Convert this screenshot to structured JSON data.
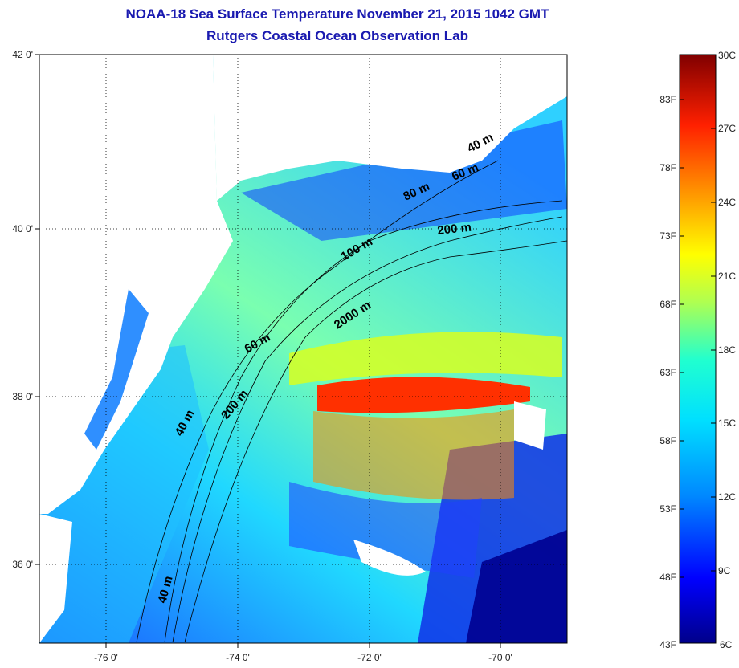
{
  "title": {
    "line1": "NOAA-18 Sea Surface Temperature November 21, 2015 1042 GMT",
    "line2": "Rutgers Coastal Ocean Observation Lab"
  },
  "map": {
    "latitude_labels": [
      "42 0'",
      "40 0'",
      "38 0'",
      "36 0'"
    ],
    "longitude_labels": [
      "-76 0'",
      "-74 0'",
      "-72 0'",
      "-70 0'"
    ],
    "contour_labels": [
      "40 m",
      "60 m",
      "80 m",
      "200 m",
      "100 m",
      "2000 m",
      "60 m",
      "200 m",
      "40 m",
      "40 m"
    ]
  },
  "colorbar": {
    "fahrenheit_labels": [
      "83F",
      "78F",
      "73F",
      "68F",
      "63F",
      "58F",
      "53F",
      "48F",
      "43F"
    ],
    "celsius_labels": [
      "30C",
      "27C",
      "24C",
      "21C",
      "18C",
      "15C",
      "12C",
      "9C",
      "6C"
    ],
    "colors": [
      "#00008a",
      "#0000ff",
      "#0088ff",
      "#00e0ff",
      "#20ffd0",
      "#b0ff50",
      "#ffff00",
      "#ff9000",
      "#ff2000",
      "#800000"
    ]
  }
}
